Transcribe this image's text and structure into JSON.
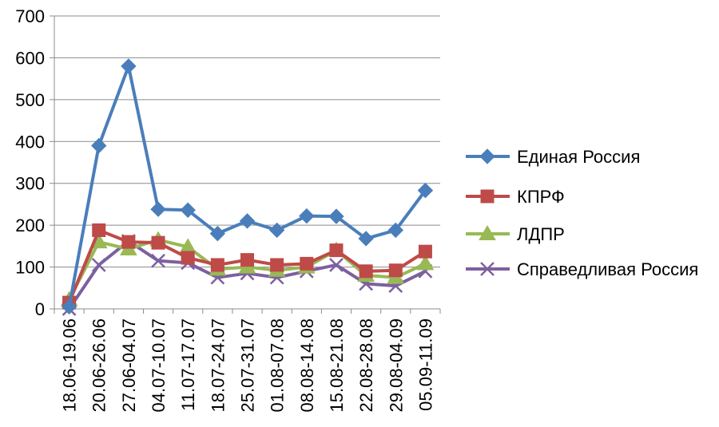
{
  "chart_data": {
    "type": "line",
    "title": "",
    "xlabel": "",
    "ylabel": "",
    "ylim": [
      0,
      700
    ],
    "yticks": [
      "0",
      "100",
      "200",
      "300",
      "400",
      "500",
      "600",
      "700"
    ],
    "grid": "horizontal",
    "legend_position": "right",
    "categories": [
      "18.06-19.06",
      "20.06-26.06",
      "27.06-04.07",
      "04.07-10.07",
      "11.07-17.07",
      "18.07-24.07",
      "25.07-31.07",
      "01.08-07.08",
      "08.08-14.08",
      "15.08-21.08",
      "22.08-28.08",
      "29.08-04.09",
      "05.09-11.09"
    ],
    "series": [
      {
        "name": "Единая Россия",
        "color": "#4a7ebb",
        "marker": "diamond",
        "values": [
          5,
          390,
          580,
          238,
          236,
          180,
          210,
          188,
          222,
          221,
          168,
          188,
          283
        ]
      },
      {
        "name": "КПРФ",
        "color": "#be4b48",
        "marker": "square",
        "values": [
          15,
          188,
          160,
          158,
          122,
          105,
          117,
          105,
          108,
          140,
          90,
          92,
          137
        ]
      },
      {
        "name": "ЛДПР",
        "color": "#98b954",
        "marker": "triangle",
        "values": [
          22,
          160,
          143,
          165,
          148,
          95,
          100,
          92,
          100,
          140,
          80,
          75,
          108
        ]
      },
      {
        "name": "Справедливая Россия",
        "color": "#7d60a0",
        "marker": "x",
        "values": [
          0,
          105,
          162,
          115,
          110,
          75,
          85,
          75,
          90,
          105,
          60,
          55,
          90
        ]
      }
    ]
  }
}
